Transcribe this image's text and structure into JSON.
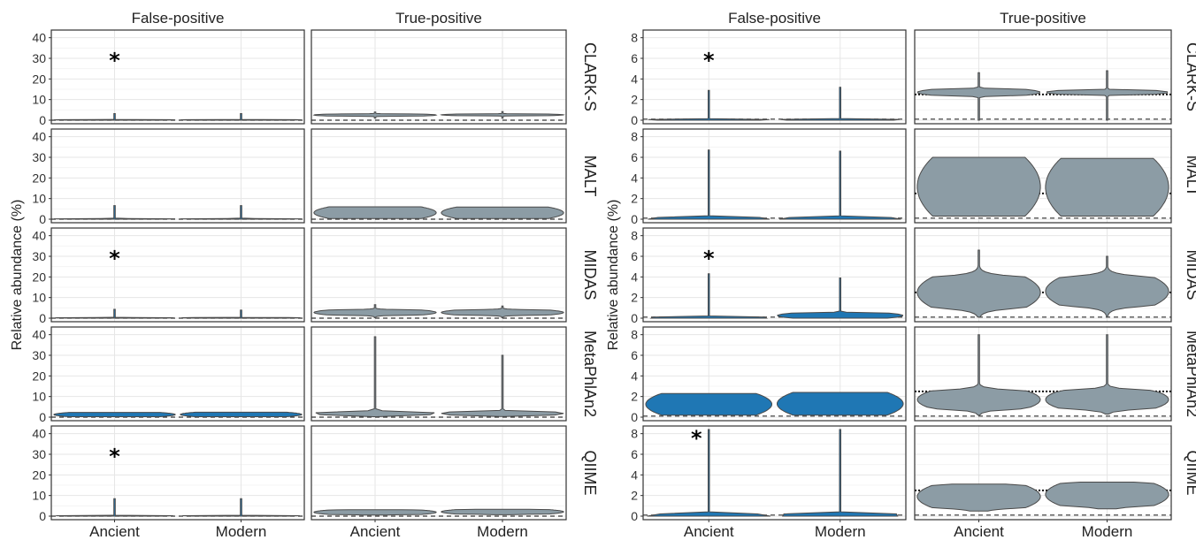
{
  "chart_data": [
    {
      "type": "violin",
      "ylabel": "Relative abundance (%)",
      "ylim": [
        0,
        42
      ],
      "yticks": [
        "0",
        "10",
        "20",
        "30",
        "40"
      ],
      "columns": [
        "False-positive",
        "True-positive"
      ],
      "rows": [
        "CLARK-S",
        "MALT",
        "MIDAS",
        "MetaPhlAn2",
        "QIIME"
      ],
      "categories": [
        "Ancient",
        "Modern"
      ],
      "reference_line_dashed": 0,
      "grid": true,
      "cells": [
        {
          "row": "CLARK-S",
          "column": "False-positive",
          "star": "*",
          "violins": [
            {
              "category": "Ancient",
              "min": 0,
              "max": 3.2,
              "bulk_low": 0,
              "bulk_high": 0.3,
              "color": "#1f77b4"
            },
            {
              "category": "Modern",
              "min": 0,
              "max": 3.2,
              "bulk_low": 0,
              "bulk_high": 0.3,
              "color": "#1f77b4"
            }
          ]
        },
        {
          "row": "CLARK-S",
          "column": "True-positive",
          "star": "",
          "violins": [
            {
              "category": "Ancient",
              "min": 1.0,
              "max": 4.0,
              "bulk_low": 2.0,
              "bulk_high": 3.0,
              "color": "#8c9ca5"
            },
            {
              "category": "Modern",
              "min": 1.0,
              "max": 4.2,
              "bulk_low": 2.2,
              "bulk_high": 3.0,
              "color": "#8c9ca5"
            }
          ]
        },
        {
          "row": "MALT",
          "column": "False-positive",
          "star": "",
          "violins": [
            {
              "category": "Ancient",
              "min": 0,
              "max": 6.6,
              "bulk_low": 0,
              "bulk_high": 0.3,
              "color": "#1f77b4"
            },
            {
              "category": "Modern",
              "min": 0,
              "max": 6.6,
              "bulk_low": 0,
              "bulk_high": 0.3,
              "color": "#1f77b4"
            }
          ]
        },
        {
          "row": "MALT",
          "column": "True-positive",
          "star": "",
          "violins": [
            {
              "category": "Ancient",
              "min": 0.3,
              "max": 6.0,
              "bulk_low": 0.3,
              "bulk_high": 6.0,
              "color": "#8c9ca5"
            },
            {
              "category": "Modern",
              "min": 0.3,
              "max": 5.9,
              "bulk_low": 0.3,
              "bulk_high": 5.9,
              "color": "#8c9ca5"
            }
          ]
        },
        {
          "row": "MIDAS",
          "column": "False-positive",
          "star": "*",
          "violins": [
            {
              "category": "Ancient",
              "min": 0,
              "max": 4.3,
              "bulk_low": 0,
              "bulk_high": 0.3,
              "color": "#1f77b4"
            },
            {
              "category": "Modern",
              "min": 0,
              "max": 3.9,
              "bulk_low": 0,
              "bulk_high": 0.3,
              "color": "#1f77b4"
            }
          ]
        },
        {
          "row": "MIDAS",
          "column": "True-positive",
          "star": "",
          "violins": [
            {
              "category": "Ancient",
              "min": 0.2,
              "max": 6.5,
              "bulk_low": 1.5,
              "bulk_high": 4.0,
              "color": "#8c9ca5"
            },
            {
              "category": "Modern",
              "min": 0.2,
              "max": 5.9,
              "bulk_low": 1.5,
              "bulk_high": 4.0,
              "color": "#8c9ca5"
            }
          ]
        },
        {
          "row": "MetaPhlAn2",
          "column": "False-positive",
          "star": "",
          "violins": [
            {
              "category": "Ancient",
              "min": 0.2,
              "max": 2.3,
              "bulk_low": 0.2,
              "bulk_high": 2.3,
              "color": "#1f77b4"
            },
            {
              "category": "Modern",
              "min": 0.2,
              "max": 2.4,
              "bulk_low": 0.2,
              "bulk_high": 2.4,
              "color": "#1f77b4"
            }
          ]
        },
        {
          "row": "MetaPhlAn2",
          "column": "True-positive",
          "star": "",
          "violins": [
            {
              "category": "Ancient",
              "min": 0.2,
              "max": 39,
              "bulk_low": 0.8,
              "bulk_high": 2.8,
              "color": "#8c9ca5"
            },
            {
              "category": "Modern",
              "min": 0.3,
              "max": 30,
              "bulk_low": 0.8,
              "bulk_high": 2.8,
              "color": "#8c9ca5"
            }
          ]
        },
        {
          "row": "QIIME",
          "column": "False-positive",
          "star": "*",
          "violins": [
            {
              "category": "Ancient",
              "min": 0,
              "max": 8.5,
              "bulk_low": 0,
              "bulk_high": 0.3,
              "color": "#1f77b4"
            },
            {
              "category": "Modern",
              "min": 0,
              "max": 8.5,
              "bulk_low": 0,
              "bulk_high": 0.3,
              "color": "#1f77b4"
            }
          ]
        },
        {
          "row": "QIIME",
          "column": "True-positive",
          "star": "",
          "violins": [
            {
              "category": "Ancient",
              "min": 0.5,
              "max": 3.1,
              "bulk_low": 0.8,
              "bulk_high": 3.0,
              "color": "#8c9ca5"
            },
            {
              "category": "Modern",
              "min": 0.7,
              "max": 3.3,
              "bulk_low": 1.0,
              "bulk_high": 3.2,
              "color": "#8c9ca5"
            }
          ]
        }
      ]
    },
    {
      "type": "violin",
      "ylabel": "Relative abundance (%)",
      "ylim": [
        0,
        8.4
      ],
      "yticks": [
        "0",
        "2",
        "4",
        "6",
        "8"
      ],
      "columns": [
        "False-positive",
        "True-positive"
      ],
      "rows": [
        "CLARK-S",
        "MALT",
        "MIDAS",
        "MetaPhlAn2",
        "QIIME"
      ],
      "categories": [
        "Ancient",
        "Modern"
      ],
      "reference_line_dashed": 0.1,
      "reference_line_dotted": 2.5,
      "grid": true,
      "cells": [
        {
          "row": "CLARK-S",
          "column": "False-positive",
          "star": "*",
          "violins": [
            {
              "category": "Ancient",
              "min": 0,
              "max": 2.9,
              "bulk_low": 0,
              "bulk_high": 0.1,
              "color": "#1f77b4"
            },
            {
              "category": "Modern",
              "min": 0,
              "max": 3.2,
              "bulk_low": 0,
              "bulk_high": 0.1,
              "color": "#1f77b4"
            }
          ]
        },
        {
          "row": "CLARK-S",
          "column": "True-positive",
          "star": "",
          "violins": [
            {
              "category": "Ancient",
              "min": 0,
              "max": 4.6,
              "bulk_low": 2.4,
              "bulk_high": 3.0,
              "color": "#8c9ca5"
            },
            {
              "category": "Modern",
              "min": 0,
              "max": 4.8,
              "bulk_low": 2.5,
              "bulk_high": 2.9,
              "color": "#8c9ca5"
            }
          ]
        },
        {
          "row": "MALT",
          "column": "False-positive",
          "star": "",
          "violins": [
            {
              "category": "Ancient",
              "min": 0,
              "max": 6.7,
              "bulk_low": 0,
              "bulk_high": 0.1,
              "color": "#1f77b4"
            },
            {
              "category": "Modern",
              "min": 0,
              "max": 6.6,
              "bulk_low": 0,
              "bulk_high": 0.1,
              "color": "#1f77b4"
            }
          ]
        },
        {
          "row": "MALT",
          "column": "True-positive",
          "star": "",
          "violins": [
            {
              "category": "Ancient",
              "min": 0.3,
              "max": 6.0,
              "bulk_low": 0.3,
              "bulk_high": 6.0,
              "color": "#8c9ca5"
            },
            {
              "category": "Modern",
              "min": 0.3,
              "max": 5.9,
              "bulk_low": 0.3,
              "bulk_high": 5.9,
              "color": "#8c9ca5"
            }
          ]
        },
        {
          "row": "MIDAS",
          "column": "False-positive",
          "star": "*",
          "violins": [
            {
              "category": "Ancient",
              "min": 0,
              "max": 4.3,
              "bulk_low": 0,
              "bulk_high": 0.1,
              "color": "#1f77b4"
            },
            {
              "category": "Modern",
              "min": 0,
              "max": 3.9,
              "bulk_low": 0,
              "bulk_high": 0.5,
              "color": "#1f77b4"
            }
          ]
        },
        {
          "row": "MIDAS",
          "column": "True-positive",
          "star": "",
          "violins": [
            {
              "category": "Ancient",
              "min": 0.1,
              "max": 6.6,
              "bulk_low": 1.0,
              "bulk_high": 4.0,
              "color": "#8c9ca5"
            },
            {
              "category": "Modern",
              "min": 0.1,
              "max": 6.0,
              "bulk_low": 1.2,
              "bulk_high": 4.0,
              "color": "#8c9ca5"
            }
          ]
        },
        {
          "row": "MetaPhlAn2",
          "column": "False-positive",
          "star": "",
          "violins": [
            {
              "category": "Ancient",
              "min": 0.2,
              "max": 2.3,
              "bulk_low": 0.2,
              "bulk_high": 2.3,
              "color": "#1f77b4"
            },
            {
              "category": "Modern",
              "min": 0.2,
              "max": 2.4,
              "bulk_low": 0.2,
              "bulk_high": 2.4,
              "color": "#1f77b4"
            }
          ]
        },
        {
          "row": "MetaPhlAn2",
          "column": "True-positive",
          "star": "",
          "violins": [
            {
              "category": "Ancient",
              "min": 0.2,
              "max": 8.0,
              "bulk_low": 0.8,
              "bulk_high": 2.6,
              "color": "#8c9ca5"
            },
            {
              "category": "Modern",
              "min": 0.3,
              "max": 8.0,
              "bulk_low": 0.8,
              "bulk_high": 2.6,
              "color": "#8c9ca5"
            }
          ]
        },
        {
          "row": "QIIME",
          "column": "False-positive",
          "star": "*",
          "violins": [
            {
              "category": "Ancient",
              "min": 0,
              "max": 8.4,
              "bulk_low": 0,
              "bulk_high": 0.1,
              "color": "#1f77b4"
            },
            {
              "category": "Modern",
              "min": 0,
              "max": 8.4,
              "bulk_low": 0,
              "bulk_high": 0.2,
              "color": "#1f77b4"
            }
          ]
        },
        {
          "row": "QIIME",
          "column": "True-positive",
          "star": "",
          "violins": [
            {
              "category": "Ancient",
              "min": 0.5,
              "max": 3.1,
              "bulk_low": 0.8,
              "bulk_high": 3.0,
              "color": "#8c9ca5"
            },
            {
              "category": "Modern",
              "min": 0.7,
              "max": 3.3,
              "bulk_low": 1.0,
              "bulk_high": 3.2,
              "color": "#8c9ca5"
            }
          ]
        }
      ]
    }
  ]
}
